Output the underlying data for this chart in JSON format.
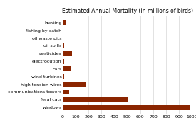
{
  "title": "Estimated Annual Mortality (in millions of birds)",
  "categories": [
    "windows",
    "feral cats",
    "communications towers",
    "high tension wires",
    "wind turbines",
    "cars",
    "electrocution",
    "pesticides",
    "oil spills",
    "oil waste pits",
    "fishing by-catch",
    "hunting"
  ],
  "values": [
    980,
    500,
    50,
    175,
    10,
    60,
    10,
    70,
    10,
    2,
    5,
    20
  ],
  "bar_color": "#8B2500",
  "bg_color": "#ffffff",
  "title_fontsize": 5.5,
  "label_fontsize": 4.5,
  "tick_fontsize": 4.5,
  "xlim": [
    0,
    1000
  ],
  "xticks": [
    0,
    100,
    200,
    300,
    400,
    500,
    600,
    700,
    800,
    900,
    1000
  ]
}
